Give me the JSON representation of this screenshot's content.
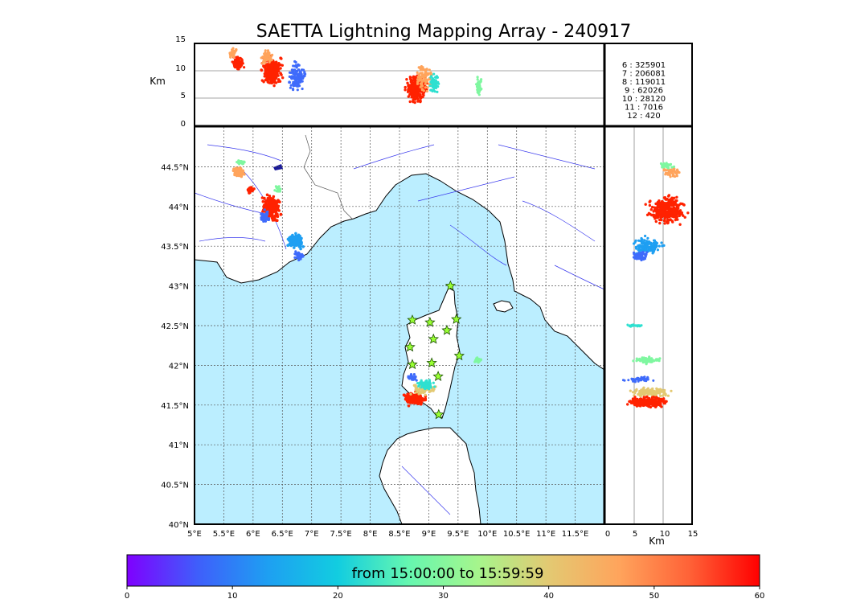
{
  "title": "SAETTA Lightning Mapping Array - 240917",
  "altitude_panel": {
    "ylabel": "Km",
    "yticks": [
      "15",
      "10",
      "5",
      "0"
    ]
  },
  "side_panel": {
    "xlabel": "Km",
    "xticks": [
      "0",
      "5",
      "10",
      "15"
    ]
  },
  "stats": [
    {
      "label": "6  :   325901",
      "color": "#000000"
    },
    {
      "label": "7  :   206081",
      "color": "#ff0000"
    },
    {
      "label": "8  :   119011",
      "color": "#000000"
    },
    {
      "label": "9  :    62026",
      "color": "#000000"
    },
    {
      "label": "10  :    28120",
      "color": "#000000"
    },
    {
      "label": "11  :     7016",
      "color": "#000000"
    },
    {
      "label": "12  :      420",
      "color": "#000000"
    }
  ],
  "map": {
    "lon_ticks": [
      "5°E",
      "5.5°E",
      "6°E",
      "6.5°E",
      "7°E",
      "7.5°E",
      "8°E",
      "8.5°E",
      "9°E",
      "9.5°E",
      "10°E",
      "10.5°E",
      "11°E",
      "11.5°E"
    ],
    "lat_ticks": [
      "44.5°N",
      "44°N",
      "43.5°N",
      "43°N",
      "42.5°N",
      "42°N",
      "41.5°N",
      "41°N",
      "40.5°N",
      "40°N"
    ],
    "sea_color": "#bbeeff",
    "stations": [
      {
        "lon": 9.37,
        "lat": 43.0
      },
      {
        "lon": 8.72,
        "lat": 42.57
      },
      {
        "lon": 9.02,
        "lat": 42.54
      },
      {
        "lon": 9.47,
        "lat": 42.58
      },
      {
        "lon": 9.31,
        "lat": 42.44
      },
      {
        "lon": 9.08,
        "lat": 42.33
      },
      {
        "lon": 8.68,
        "lat": 42.23
      },
      {
        "lon": 9.52,
        "lat": 42.12
      },
      {
        "lon": 8.72,
        "lat": 42.01
      },
      {
        "lon": 9.05,
        "lat": 42.03
      },
      {
        "lon": 9.16,
        "lat": 41.86
      },
      {
        "lon": 9.17,
        "lat": 41.38
      }
    ]
  },
  "colorbar": {
    "label": "from 15:00:00 to 15:59:59",
    "ticks": [
      "0",
      "10",
      "20",
      "30",
      "40",
      "50",
      "60"
    ],
    "colors": [
      "#7f00ff",
      "#3f5efb",
      "#1e9ff2",
      "#12cde0",
      "#65f7b0",
      "#a6f58c",
      "#e3c972",
      "#ffa45c",
      "#ff6237",
      "#ff0000"
    ]
  }
}
